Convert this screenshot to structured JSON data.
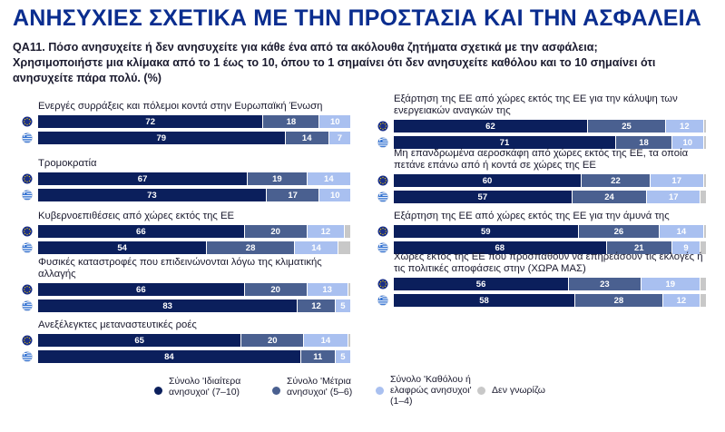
{
  "title": "ΑΝΗΣΥΧΙΕΣ ΣΧΕΤΙΚΑ ΜΕ ΤΗΝ ΠΡΟΣΤΑΣΙΑ ΚΑΙ ΤΗΝ ΑΣΦΑΛΕΙΑ",
  "question": "QA11. Πόσο ανησυχείτε ή δεν ανησυχείτε για κάθε ένα από τα ακόλουθα ζητήματα σχετικά με την ασφάλεια; Χρησιμοποιήστε μια κλίμακα από το 1 έως το 10, όπου το 1 σημαίνει ότι δεν ανησυχείτε καθόλου και το 10 σημαίνει ότι ανησυχείτε πάρα πολύ. (%)",
  "colors": {
    "very": "#0b1f5c",
    "moderately": "#4a6090",
    "not": "#a9c0f0",
    "dk": "#c8c8c8",
    "eu_flag": "#1a2f87",
    "gr_flag": "#2f6fd0"
  },
  "chart_data": {
    "type": "bar",
    "stacked": true,
    "orientation": "horizontal",
    "xlim": [
      0,
      100
    ],
    "legend_position": "bottom",
    "series": [
      {
        "name": "Σύνολο 'Ιδιαίτερα ανησυχοι' (7–10)",
        "key": "very"
      },
      {
        "name": "Σύνολο 'Μέτρια ανησυχοι' (5–6)",
        "key": "moderately"
      },
      {
        "name": "Σύνολο 'Καθόλου ή ελαφρώς ανησυχοι' (1–4)",
        "key": "not"
      },
      {
        "name": "Δεν γνωρίζω",
        "key": "dk"
      }
    ],
    "row_groups": [
      "EU27",
      "EL"
    ],
    "items": [
      {
        "label": "Ενεργές συρράξεις και πόλεμοι κοντά στην Ευρωπαϊκή Ένωση",
        "eu": [
          72,
          18,
          10,
          0
        ],
        "gr": [
          79,
          14,
          7,
          0
        ]
      },
      {
        "label": "Τρομοκρατία",
        "eu": [
          67,
          19,
          14,
          0
        ],
        "gr": [
          73,
          17,
          10,
          0
        ]
      },
      {
        "label": "Κυβερνοεπιθέσεις από χώρες εκτός της ΕΕ",
        "eu": [
          66,
          20,
          12,
          2
        ],
        "gr": [
          54,
          28,
          14,
          4
        ]
      },
      {
        "label": "Φυσικές καταστροφές που επιδεινώνονται λόγω της κλιματικής αλλαγής",
        "eu": [
          66,
          20,
          13,
          1
        ],
        "gr": [
          83,
          12,
          5,
          0
        ]
      },
      {
        "label": "Ανεξέλεγκτες μεταναστευτικές ροές",
        "eu": [
          65,
          20,
          14,
          1
        ],
        "gr": [
          84,
          11,
          5,
          0
        ]
      },
      {
        "label": "Εξάρτηση της ΕΕ από χώρες εκτός της ΕΕ για την κάλυψη των ενεργειακών αναγκών της",
        "eu": [
          62,
          25,
          12,
          1
        ],
        "gr": [
          71,
          18,
          10,
          1
        ]
      },
      {
        "label": "Μη επανδρωμένα αεροσκάφη από χώρες εκτός της ΕΕ, τα οποία πετάνε επάνω από ή κοντά σε χώρες της ΕΕ",
        "eu": [
          60,
          22,
          17,
          1
        ],
        "gr": [
          57,
          24,
          17,
          2
        ]
      },
      {
        "label": "Εξάρτηση της ΕΕ από χώρες εκτός της ΕΕ για την άμυνά της",
        "eu": [
          59,
          26,
          14,
          1
        ],
        "gr": [
          68,
          21,
          9,
          2
        ]
      },
      {
        "label": "Χώρες εκτός της ΕΕ που προσπαθούν να επηρεάσουν τις εκλογές ή τις πολιτικές αποφάσεις στην (ΧΩΡΑ ΜΑΣ)",
        "eu": [
          56,
          23,
          19,
          2
        ],
        "gr": [
          58,
          28,
          12,
          2
        ]
      }
    ]
  },
  "legend": [
    {
      "label": "Σύνολο 'Ιδιαίτερα ανησυχοι' (7–10)",
      "color_key": "very"
    },
    {
      "label": "Σύνολο 'Μέτρια ανησυχοι' (5–6)",
      "color_key": "moderately"
    },
    {
      "label": "Σύνολο 'Καθόλου ή ελαφρώς ανησυχοι' (1–4)",
      "color_key": "not"
    },
    {
      "label": "Δεν γνωρίζω",
      "color_key": "dk"
    }
  ]
}
